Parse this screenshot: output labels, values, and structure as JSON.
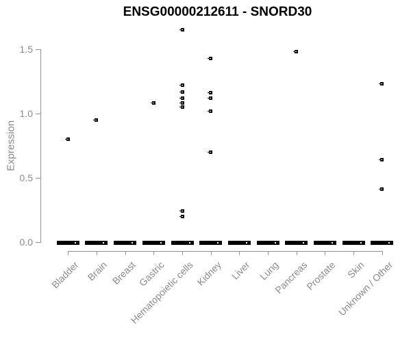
{
  "chart_data": {
    "type": "scatter",
    "title": "ENSG00000212611 - SNORD30",
    "xlabel": "",
    "ylabel": "Expression",
    "ylim": [
      0,
      1.7
    ],
    "grid": false,
    "legend": null,
    "marker": "open-square",
    "yticks": [
      {
        "value": 0.0,
        "label": "0.0"
      },
      {
        "value": 0.5,
        "label": "0.5"
      },
      {
        "value": 1.0,
        "label": "1.0"
      },
      {
        "value": 1.5,
        "label": "1.5"
      }
    ],
    "categories": [
      "Bladder",
      "Brain",
      "Breast",
      "Gastric",
      "Hematopoietic cells",
      "Kidney",
      "Liver",
      "Lung",
      "Pancreas",
      "Prostate",
      "Skin",
      "Unknown / Other"
    ],
    "series": [
      {
        "category": "Bladder",
        "values": [
          0.8
        ],
        "zero_cluster": true
      },
      {
        "category": "Brain",
        "values": [
          0.95
        ],
        "zero_cluster": true
      },
      {
        "category": "Breast",
        "values": [],
        "zero_cluster": true
      },
      {
        "category": "Gastric",
        "values": [
          1.08
        ],
        "zero_cluster": true
      },
      {
        "category": "Hematopoietic cells",
        "values": [
          1.65,
          1.22,
          1.17,
          1.12,
          1.08,
          1.05,
          0.24,
          0.2
        ],
        "zero_cluster": true
      },
      {
        "category": "Kidney",
        "values": [
          1.43,
          1.16,
          1.12,
          1.02,
          0.7
        ],
        "zero_cluster": true
      },
      {
        "category": "Liver",
        "values": [],
        "zero_cluster": true
      },
      {
        "category": "Lung",
        "values": [],
        "zero_cluster": true
      },
      {
        "category": "Pancreas",
        "values": [
          1.48
        ],
        "zero_cluster": true
      },
      {
        "category": "Prostate",
        "values": [],
        "zero_cluster": true
      },
      {
        "category": "Skin",
        "values": [],
        "zero_cluster": true
      },
      {
        "category": "Unknown / Other",
        "values": [
          1.23,
          0.64,
          0.41
        ],
        "zero_cluster": true
      }
    ],
    "colors": {
      "point": "#000000",
      "axis": "#919191",
      "tick_label": "#8a8a8a",
      "title": "#000000",
      "background": "#ffffff"
    }
  }
}
